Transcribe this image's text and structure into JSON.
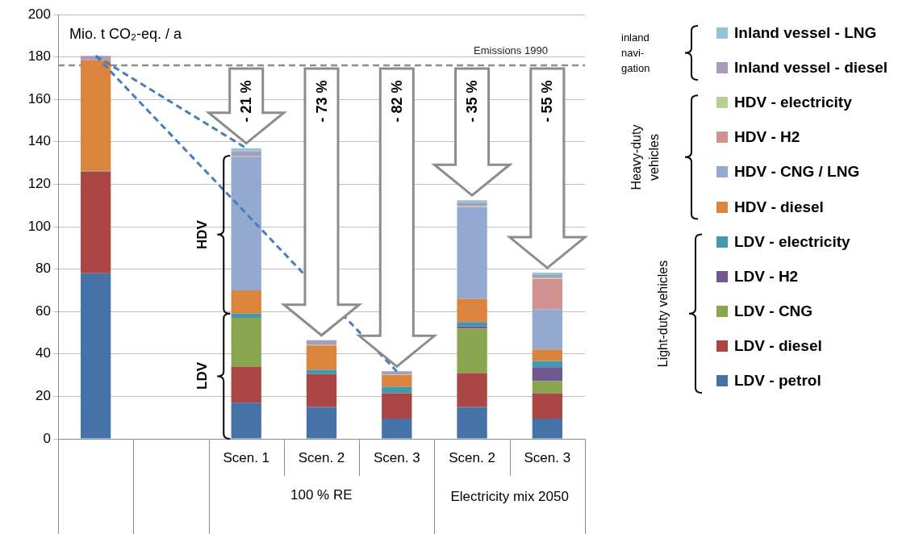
{
  "chart_data": {
    "type": "bar",
    "stacked": true,
    "ylabel": "Mio. t CO₂-eq. / a",
    "categories": [
      null,
      null,
      "Scen. 1",
      "Scen. 2",
      "Scen. 3",
      "Scen. 2",
      "Scen. 3"
    ],
    "series": [
      {
        "name": "LDV - petrol",
        "color": "#4572a7",
        "values": [
          78,
          null,
          17,
          15,
          9.5,
          15,
          9.5
        ]
      },
      {
        "name": "LDV - diesel",
        "color": "#aa4643",
        "values": [
          48,
          null,
          17,
          15.5,
          12,
          16,
          12
        ]
      },
      {
        "name": "LDV - CNG",
        "color": "#89a54e",
        "values": [
          0.5,
          null,
          23,
          null,
          null,
          21,
          5.7
        ]
      },
      {
        "name": "LDV - H2",
        "color": "#71588f",
        "values": [
          null,
          null,
          null,
          null,
          null,
          1,
          6.5
        ]
      },
      {
        "name": "LDV - electricity",
        "color": "#4198af",
        "values": [
          null,
          null,
          2,
          2,
          3,
          2,
          3
        ]
      },
      {
        "name": "HDV - diesel",
        "color": "#db843d",
        "values": [
          52,
          null,
          11,
          11.5,
          5.5,
          11,
          5.4
        ]
      },
      {
        "name": "HDV - CNG / LNG",
        "color": "#93a9cf",
        "values": [
          null,
          null,
          63,
          null,
          null,
          43.3,
          19
        ]
      },
      {
        "name": "HDV - H2",
        "color": "#d19392",
        "values": [
          null,
          null,
          null,
          null,
          null,
          null,
          14.3
        ]
      },
      {
        "name": "HDV - electricity",
        "color": "#b9cd96",
        "values": [
          null,
          null,
          0.5,
          0.5,
          0.3,
          0.5,
          0.5
        ]
      },
      {
        "name": "Inland vessel - diesel",
        "color": "#a99bbd",
        "values": [
          2,
          null,
          2,
          2,
          1.5,
          1.5,
          1.3
        ]
      },
      {
        "name": "Inland vessel - LNG",
        "color": "#92c5d6",
        "values": [
          null,
          null,
          1.5,
          null,
          null,
          1.2,
          1.1
        ]
      },
      {
        "type": "line",
        "color": "#4a7ebb",
        "line_style": "dashed",
        "marker": "none",
        "values": [
          180.5,
          null,
          137,
          null,
          null,
          null,
          null
        ]
      },
      {
        "type": "line",
        "color": "#4a7ebb",
        "line_style": "dashed",
        "marker": "none",
        "values": [
          180.5,
          null,
          null,
          null,
          31.8,
          null,
          null
        ]
      }
    ],
    "ylim": [
      0,
      200
    ],
    "yticks": [
      0,
      20,
      40,
      60,
      80,
      100,
      120,
      140,
      160,
      180,
      200
    ],
    "grid": "y",
    "legend": "right",
    "ref_lines": [
      {
        "axis": "y",
        "value": 176,
        "label": "Emissions 1990",
        "color": "#8c8c8c",
        "line_style": "dashed"
      }
    ],
    "annotations": [
      "- 21 %",
      "- 73 %",
      "- 82 %",
      "- 35 %",
      "- 55 %",
      "100 % RE",
      "Electricity mix 2050",
      "HDV",
      "LDV",
      "inland navi-gation",
      "Heavy-duty vehicles",
      "Light-duty vehicles"
    ]
  }
}
